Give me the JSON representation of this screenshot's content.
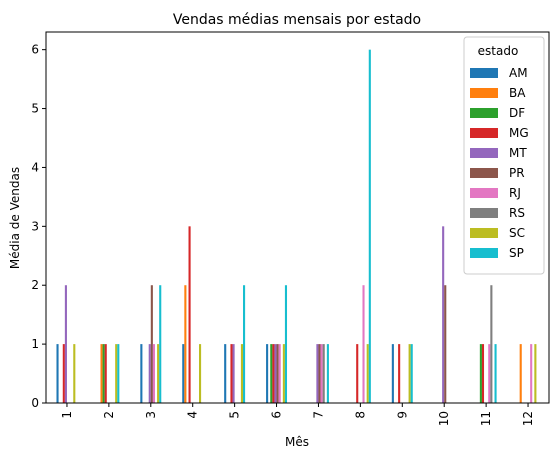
{
  "chart_data": {
    "type": "bar",
    "title": "Vendas médias mensais por estado",
    "xlabel": "Mês",
    "ylabel": "Média de Vendas",
    "categories": [
      "1",
      "2",
      "3",
      "4",
      "5",
      "6",
      "7",
      "8",
      "9",
      "10",
      "11",
      "12"
    ],
    "ylim": [
      0,
      6.3
    ],
    "yticks": [
      0,
      1,
      2,
      3,
      4,
      5,
      6
    ],
    "grid": false,
    "legend": {
      "title": "estado",
      "placement": "top-right"
    },
    "series": [
      {
        "name": "AM",
        "color": "#1f77b4",
        "values": [
          1,
          0,
          1,
          1,
          1,
          1,
          0,
          0,
          1,
          0,
          0,
          0
        ]
      },
      {
        "name": "BA",
        "color": "#ff7f0e",
        "values": [
          0,
          1,
          0,
          2,
          0,
          0,
          0,
          0,
          0,
          0,
          0,
          1
        ]
      },
      {
        "name": "DF",
        "color": "#2ca02c",
        "values": [
          0,
          1,
          0,
          0,
          0,
          1,
          0,
          0,
          0,
          0,
          1,
          0
        ]
      },
      {
        "name": "MG",
        "color": "#d62728",
        "values": [
          1,
          1,
          0,
          3,
          1,
          1,
          0,
          1,
          1,
          0,
          1,
          0
        ]
      },
      {
        "name": "MT",
        "color": "#9467bd",
        "values": [
          2,
          0,
          1,
          0,
          1,
          1,
          1,
          0,
          0,
          3,
          0,
          0
        ]
      },
      {
        "name": "PR",
        "color": "#8c564b",
        "values": [
          0,
          0,
          2,
          0,
          0,
          1,
          1,
          0,
          0,
          2,
          0,
          0
        ]
      },
      {
        "name": "RJ",
        "color": "#e377c2",
        "values": [
          0,
          0,
          1,
          0,
          0,
          1,
          1,
          2,
          0,
          0,
          1,
          1
        ]
      },
      {
        "name": "RS",
        "color": "#7f7f7f",
        "values": [
          0,
          0,
          0,
          0,
          0,
          0,
          1,
          0,
          0,
          0,
          2,
          0
        ]
      },
      {
        "name": "SC",
        "color": "#bcbd22",
        "values": [
          1,
          1,
          1,
          1,
          1,
          1,
          0,
          1,
          1,
          0,
          0,
          1
        ]
      },
      {
        "name": "SP",
        "color": "#17becf",
        "values": [
          0,
          1,
          2,
          0,
          2,
          2,
          1,
          6,
          1,
          0,
          1,
          0
        ]
      }
    ]
  }
}
